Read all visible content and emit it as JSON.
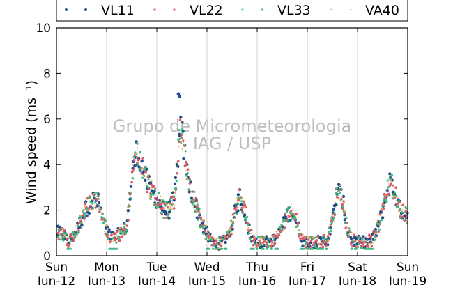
{
  "chart_data": {
    "type": "scatter",
    "ylabel": "Wind speed (ms⁻¹)",
    "ylim": [
      0,
      10
    ],
    "yticks": [
      "0",
      "2",
      "4",
      "6",
      "8",
      "10"
    ],
    "xlim": [
      0,
      7
    ],
    "xticks": [
      {
        "day": "Sun",
        "date": "Jun-12"
      },
      {
        "day": "Mon",
        "date": "Jun-13"
      },
      {
        "day": "Tue",
        "date": "Jun-14"
      },
      {
        "day": "Wed",
        "date": "Jun-15"
      },
      {
        "day": "Thu",
        "date": "Jun-16"
      },
      {
        "day": "Fri",
        "date": "Jun-17"
      },
      {
        "day": "Sat",
        "date": "Jun-18"
      },
      {
        "day": "Sun",
        "date": "Jun-19"
      }
    ],
    "grid": "vertical",
    "legend_position": "top",
    "watermark": [
      "Grupo de Micrometeorologia",
      "IAG / USP"
    ],
    "series": [
      {
        "name": "VL11",
        "color": "#1f4e8c",
        "marker_size": 2.2
      },
      {
        "name": "VL22",
        "color": "#d9596a",
        "marker_size": 1.8
      },
      {
        "name": "VL33",
        "color": "#3dbb7a",
        "marker_size": 1.6
      },
      {
        "name": "VA40",
        "color": "#f2a65a",
        "marker_size": 1.0
      }
    ],
    "profile_x": [
      0,
      0.12,
      0.25,
      0.38,
      0.5,
      0.62,
      0.75,
      0.85,
      0.95,
      1.05,
      1.15,
      1.3,
      1.4,
      1.5,
      1.6,
      1.72,
      1.85,
      2.0,
      2.15,
      2.25,
      2.35,
      2.42,
      2.48,
      2.55,
      2.62,
      2.72,
      2.85,
      3.0,
      3.1,
      3.2,
      3.3,
      3.45,
      3.55,
      3.65,
      3.75,
      3.85,
      3.95,
      4.05,
      4.2,
      4.35,
      4.5,
      4.6,
      4.7,
      4.8,
      4.9,
      5.0,
      5.1,
      5.25,
      5.4,
      5.5,
      5.6,
      5.7,
      5.8,
      5.9,
      6.0,
      6.15,
      6.3,
      6.45,
      6.55,
      6.65,
      6.75,
      6.85,
      7.0
    ],
    "profile_y": [
      1.0,
      1.0,
      0.6,
      1.0,
      1.6,
      2.2,
      2.5,
      2.3,
      1.4,
      0.9,
      0.8,
      1.0,
      1.3,
      3.3,
      4.7,
      3.8,
      3.0,
      2.5,
      2.0,
      2.0,
      2.5,
      4.4,
      5.7,
      4.5,
      3.3,
      2.6,
      1.7,
      0.9,
      0.6,
      0.5,
      0.6,
      1.0,
      1.8,
      2.6,
      2.0,
      1.0,
      0.6,
      0.6,
      0.6,
      0.7,
      1.2,
      1.8,
      2.0,
      1.4,
      0.7,
      0.6,
      0.6,
      0.6,
      0.7,
      1.5,
      2.9,
      2.5,
      1.1,
      0.7,
      0.6,
      0.6,
      0.7,
      1.5,
      2.5,
      3.3,
      2.7,
      2.0,
      1.8
    ],
    "noise_amplitude": 0.35,
    "calm_level": 0.3,
    "outliers": [
      {
        "x": 2.43,
        "y": 7.1
      },
      {
        "x": 2.45,
        "y": 7.0
      }
    ]
  }
}
